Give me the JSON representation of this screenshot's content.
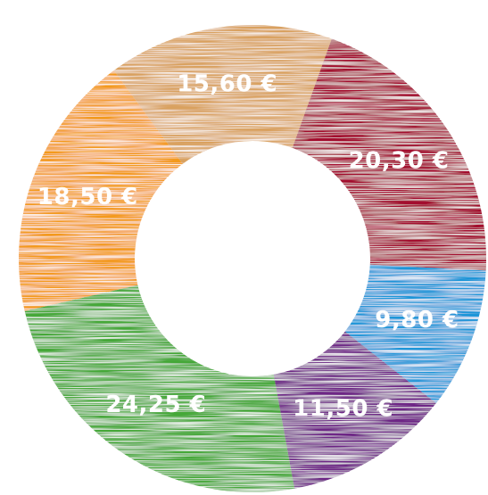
{
  "chart_data": {
    "type": "pie",
    "donut": true,
    "title": "",
    "currency_symbol": "€",
    "slices": [
      {
        "label": "18,50 €",
        "value": 18.5,
        "color": "#F39A1E"
      },
      {
        "label": "15,60 €",
        "value": 15.6,
        "color": "#D9A15E"
      },
      {
        "label": "20,30 €",
        "value": 20.3,
        "color": "#A3112E"
      },
      {
        "label": "9,80 €",
        "value": 9.8,
        "color": "#1D96D8"
      },
      {
        "label": "11,50 €",
        "value": 11.5,
        "color": "#6E2586"
      },
      {
        "label": "24,25 €",
        "value": 24.25,
        "color": "#45A838"
      }
    ],
    "legend": "none",
    "style": "hand-drawn scribble fill"
  }
}
